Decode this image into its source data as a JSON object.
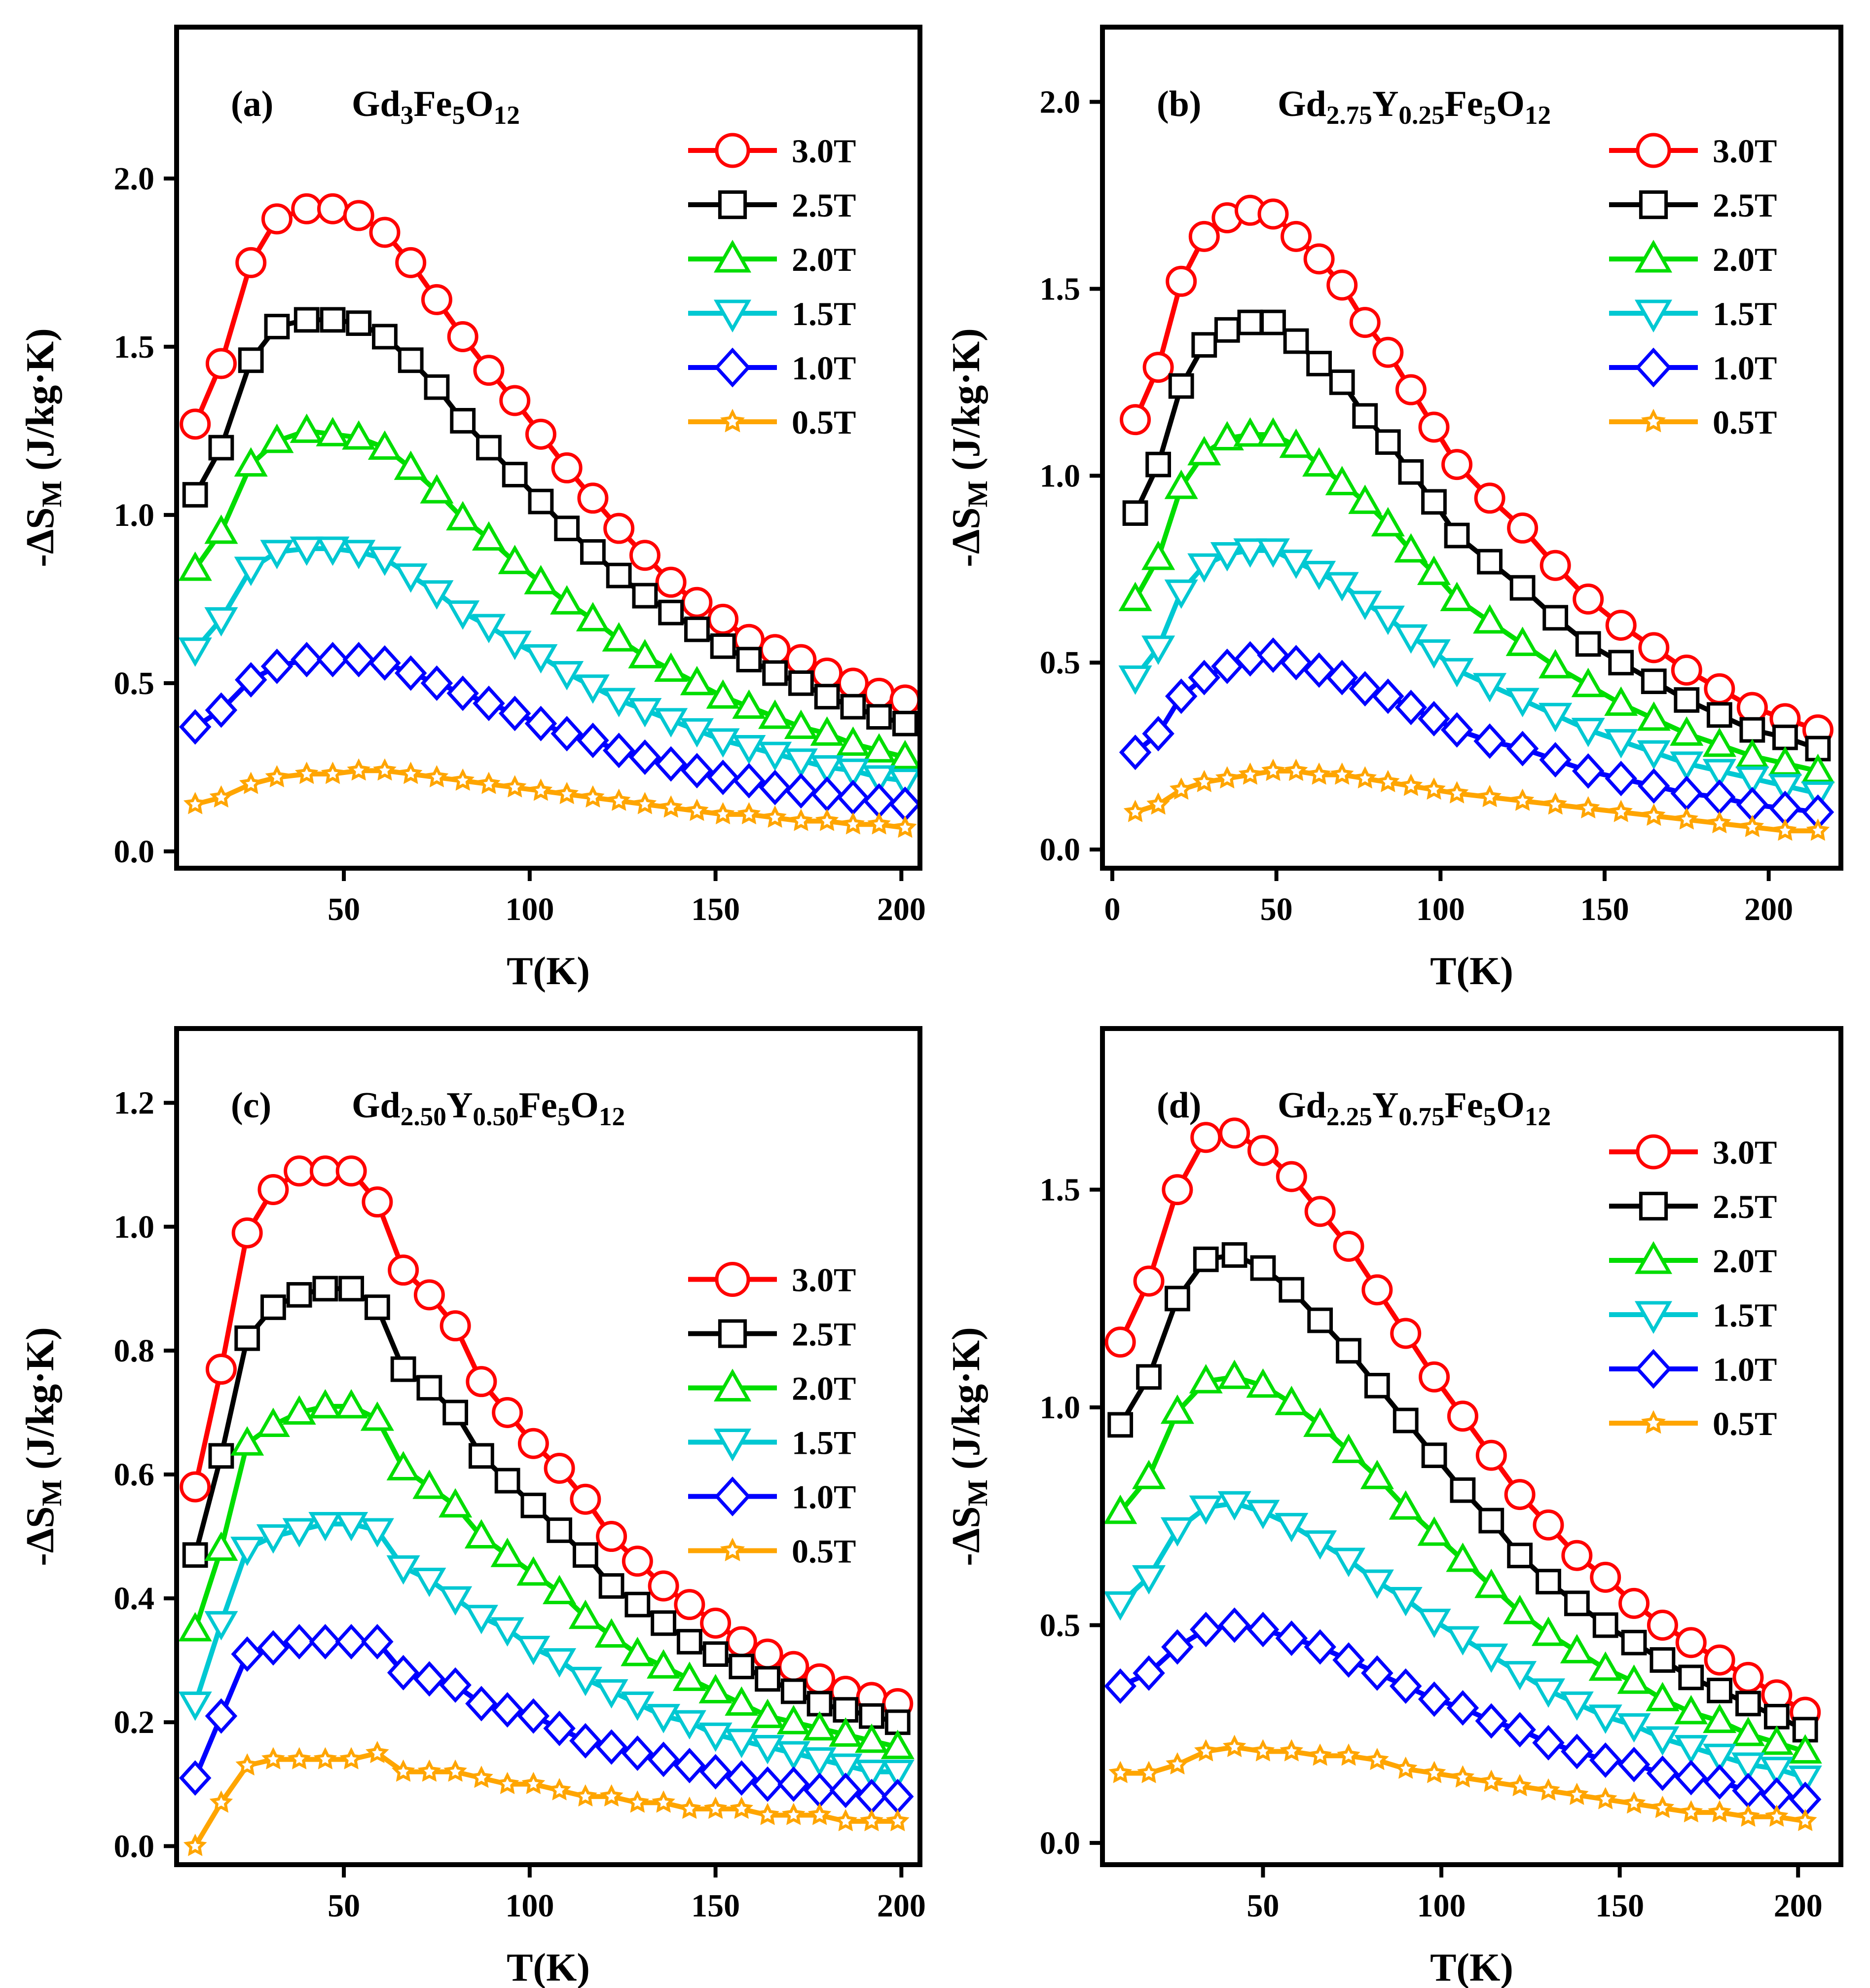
{
  "series_styles": [
    {
      "name": "3.0T",
      "color": "#ff0000",
      "marker": "circle"
    },
    {
      "name": "2.5T",
      "color": "#000000",
      "marker": "square"
    },
    {
      "name": "2.0T",
      "color": "#00dd00",
      "marker": "triangle-up"
    },
    {
      "name": "1.5T",
      "color": "#00c8d2",
      "marker": "triangle-down"
    },
    {
      "name": "1.0T",
      "color": "#0000ff",
      "marker": "diamond"
    },
    {
      "name": "0.5T",
      "color": "#ffa500",
      "marker": "star"
    }
  ],
  "chart_data": [
    {
      "type": "line",
      "panel": "(a)",
      "title": "Gd3Fe5O12",
      "title_subs": [
        "3",
        "5",
        "12"
      ],
      "xlabel": "T(K)",
      "ylabel": "-ΔS",
      "ylabel_sub": "M",
      "ylabel_unit": "(J/kg·K)",
      "xlim": [
        5,
        205
      ],
      "ylim": [
        -0.05,
        2.45
      ],
      "xticks": [
        50,
        100,
        150,
        200
      ],
      "yticks": [
        0.0,
        0.5,
        1.0,
        1.5,
        2.0
      ],
      "legend": "right-upper",
      "x": [
        10,
        17,
        25,
        32,
        40,
        47,
        54,
        61,
        68,
        75,
        82,
        89,
        96,
        103,
        110,
        117,
        124,
        131,
        138,
        145,
        152,
        159,
        166,
        173,
        180,
        187,
        194,
        201
      ],
      "series": [
        {
          "name": "3.0T",
          "values": [
            1.27,
            1.45,
            1.75,
            1.88,
            1.91,
            1.91,
            1.89,
            1.84,
            1.75,
            1.64,
            1.53,
            1.43,
            1.34,
            1.24,
            1.14,
            1.05,
            0.96,
            0.88,
            0.8,
            0.74,
            0.69,
            0.63,
            0.6,
            0.57,
            0.53,
            0.5,
            0.47,
            0.45
          ]
        },
        {
          "name": "2.5T",
          "values": [
            1.06,
            1.2,
            1.46,
            1.56,
            1.58,
            1.58,
            1.57,
            1.53,
            1.46,
            1.38,
            1.28,
            1.2,
            1.12,
            1.04,
            0.96,
            0.89,
            0.82,
            0.76,
            0.71,
            0.66,
            0.61,
            0.57,
            0.53,
            0.5,
            0.46,
            0.43,
            0.4,
            0.38
          ]
        },
        {
          "name": "2.0T",
          "values": [
            0.84,
            0.95,
            1.15,
            1.22,
            1.25,
            1.24,
            1.23,
            1.2,
            1.14,
            1.07,
            0.99,
            0.93,
            0.86,
            0.8,
            0.74,
            0.69,
            0.63,
            0.58,
            0.54,
            0.5,
            0.46,
            0.43,
            0.4,
            0.37,
            0.35,
            0.32,
            0.3,
            0.28
          ]
        },
        {
          "name": "1.5T",
          "values": [
            0.6,
            0.69,
            0.84,
            0.89,
            0.9,
            0.9,
            0.89,
            0.87,
            0.82,
            0.77,
            0.71,
            0.67,
            0.62,
            0.58,
            0.53,
            0.49,
            0.45,
            0.42,
            0.39,
            0.36,
            0.33,
            0.31,
            0.29,
            0.27,
            0.25,
            0.24,
            0.22,
            0.21
          ]
        },
        {
          "name": "1.0T",
          "values": [
            0.37,
            0.42,
            0.51,
            0.55,
            0.57,
            0.57,
            0.57,
            0.56,
            0.53,
            0.5,
            0.47,
            0.44,
            0.41,
            0.38,
            0.35,
            0.33,
            0.3,
            0.28,
            0.26,
            0.24,
            0.22,
            0.21,
            0.19,
            0.18,
            0.17,
            0.16,
            0.15,
            0.14
          ]
        },
        {
          "name": "0.5T",
          "values": [
            0.14,
            0.16,
            0.2,
            0.22,
            0.23,
            0.23,
            0.24,
            0.24,
            0.23,
            0.22,
            0.21,
            0.2,
            0.19,
            0.18,
            0.17,
            0.16,
            0.15,
            0.14,
            0.13,
            0.12,
            0.11,
            0.11,
            0.1,
            0.09,
            0.09,
            0.08,
            0.08,
            0.07
          ]
        }
      ]
    },
    {
      "type": "line",
      "panel": "(b)",
      "title": "Gd2.75Y0.25Fe5O12",
      "title_subs": [
        "2.75",
        "0.25",
        "5",
        "12"
      ],
      "xlabel": "T(K)",
      "ylabel": "-ΔS",
      "ylabel_sub": "M",
      "ylabel_unit": "(J/kg·K)",
      "xlim": [
        -3,
        222
      ],
      "ylim": [
        -0.05,
        2.2
      ],
      "xticks": [
        0,
        50,
        100,
        150,
        200
      ],
      "yticks": [
        0.0,
        0.5,
        1.0,
        1.5,
        2.0
      ],
      "legend": "right-upper",
      "x": [
        7,
        14,
        21,
        28,
        35,
        42,
        49,
        56,
        63,
        70,
        77,
        84,
        91,
        98,
        105,
        115,
        125,
        135,
        145,
        155,
        165,
        175,
        185,
        195,
        205,
        215
      ],
      "series": [
        {
          "name": "3.0T",
          "values": [
            1.15,
            1.29,
            1.52,
            1.64,
            1.69,
            1.71,
            1.7,
            1.64,
            1.58,
            1.51,
            1.41,
            1.33,
            1.23,
            1.13,
            1.03,
            0.94,
            0.86,
            0.76,
            0.67,
            0.6,
            0.54,
            0.48,
            0.43,
            0.38,
            0.35,
            0.32
          ]
        },
        {
          "name": "2.5T",
          "values": [
            0.9,
            1.03,
            1.24,
            1.35,
            1.39,
            1.41,
            1.41,
            1.36,
            1.3,
            1.25,
            1.16,
            1.09,
            1.01,
            0.93,
            0.84,
            0.77,
            0.7,
            0.62,
            0.55,
            0.5,
            0.45,
            0.4,
            0.36,
            0.32,
            0.3,
            0.27
          ]
        },
        {
          "name": "2.0T",
          "values": [
            0.67,
            0.78,
            0.97,
            1.06,
            1.1,
            1.11,
            1.11,
            1.08,
            1.03,
            0.98,
            0.93,
            0.87,
            0.8,
            0.74,
            0.67,
            0.61,
            0.55,
            0.49,
            0.44,
            0.39,
            0.35,
            0.31,
            0.28,
            0.25,
            0.23,
            0.21
          ]
        },
        {
          "name": "1.5T",
          "values": [
            0.46,
            0.54,
            0.69,
            0.76,
            0.79,
            0.8,
            0.8,
            0.77,
            0.74,
            0.71,
            0.66,
            0.62,
            0.57,
            0.53,
            0.48,
            0.44,
            0.4,
            0.36,
            0.32,
            0.29,
            0.26,
            0.23,
            0.21,
            0.19,
            0.17,
            0.15
          ]
        },
        {
          "name": "1.0T",
          "values": [
            0.26,
            0.31,
            0.41,
            0.46,
            0.49,
            0.51,
            0.52,
            0.5,
            0.48,
            0.46,
            0.43,
            0.41,
            0.38,
            0.35,
            0.32,
            0.29,
            0.27,
            0.24,
            0.21,
            0.19,
            0.17,
            0.15,
            0.14,
            0.12,
            0.11,
            0.1
          ]
        },
        {
          "name": "0.5T",
          "values": [
            0.1,
            0.12,
            0.16,
            0.18,
            0.19,
            0.2,
            0.21,
            0.21,
            0.2,
            0.2,
            0.19,
            0.18,
            0.17,
            0.16,
            0.15,
            0.14,
            0.13,
            0.12,
            0.11,
            0.1,
            0.09,
            0.08,
            0.07,
            0.06,
            0.05,
            0.05
          ]
        }
      ]
    },
    {
      "type": "line",
      "panel": "(c)",
      "title": "Gd2.50Y0.50Fe5O12",
      "title_subs": [
        "2.50",
        "0.50",
        "5",
        "12"
      ],
      "xlabel": "T(K)",
      "ylabel": "-ΔS",
      "ylabel_sub": "M",
      "ylabel_unit": "(J/kg·K)",
      "xlim": [
        5,
        205
      ],
      "ylim": [
        -0.03,
        1.32
      ],
      "xticks": [
        50,
        100,
        150,
        200
      ],
      "yticks": [
        0.0,
        0.2,
        0.4,
        0.6,
        0.8,
        1.0,
        1.2
      ],
      "legend": "right-middle",
      "x": [
        10,
        17,
        24,
        31,
        38,
        45,
        52,
        59,
        66,
        73,
        80,
        87,
        94,
        101,
        108,
        115,
        122,
        129,
        136,
        143,
        150,
        157,
        164,
        171,
        178,
        185,
        192,
        199
      ],
      "series": [
        {
          "name": "3.0T",
          "values": [
            0.58,
            0.77,
            0.99,
            1.06,
            1.09,
            1.09,
            1.09,
            1.04,
            0.93,
            0.89,
            0.84,
            0.75,
            0.7,
            0.65,
            0.61,
            0.56,
            0.5,
            0.46,
            0.42,
            0.39,
            0.36,
            0.33,
            0.31,
            0.29,
            0.27,
            0.25,
            0.24,
            0.23
          ]
        },
        {
          "name": "2.5T",
          "values": [
            0.47,
            0.63,
            0.82,
            0.87,
            0.89,
            0.9,
            0.9,
            0.87,
            0.77,
            0.74,
            0.7,
            0.63,
            0.59,
            0.55,
            0.51,
            0.47,
            0.42,
            0.39,
            0.36,
            0.33,
            0.31,
            0.29,
            0.27,
            0.25,
            0.23,
            0.22,
            0.21,
            0.2
          ]
        },
        {
          "name": "2.0T",
          "values": [
            0.35,
            0.48,
            0.65,
            0.68,
            0.7,
            0.71,
            0.71,
            0.69,
            0.61,
            0.58,
            0.55,
            0.5,
            0.47,
            0.44,
            0.41,
            0.37,
            0.34,
            0.31,
            0.29,
            0.27,
            0.25,
            0.23,
            0.21,
            0.2,
            0.19,
            0.18,
            0.17,
            0.16
          ]
        },
        {
          "name": "1.5T",
          "values": [
            0.23,
            0.36,
            0.48,
            0.5,
            0.51,
            0.52,
            0.52,
            0.51,
            0.45,
            0.43,
            0.4,
            0.37,
            0.35,
            0.32,
            0.3,
            0.27,
            0.25,
            0.23,
            0.21,
            0.2,
            0.18,
            0.17,
            0.16,
            0.15,
            0.14,
            0.13,
            0.12,
            0.12
          ]
        },
        {
          "name": "1.0T",
          "values": [
            0.11,
            0.21,
            0.31,
            0.32,
            0.33,
            0.33,
            0.33,
            0.33,
            0.28,
            0.27,
            0.26,
            0.23,
            0.22,
            0.21,
            0.19,
            0.17,
            0.16,
            0.15,
            0.14,
            0.13,
            0.12,
            0.11,
            0.1,
            0.1,
            0.09,
            0.09,
            0.08,
            0.08
          ]
        },
        {
          "name": "0.5T",
          "values": [
            0.0,
            0.07,
            0.13,
            0.14,
            0.14,
            0.14,
            0.14,
            0.15,
            0.12,
            0.12,
            0.12,
            0.11,
            0.1,
            0.1,
            0.09,
            0.08,
            0.08,
            0.07,
            0.07,
            0.06,
            0.06,
            0.06,
            0.05,
            0.05,
            0.05,
            0.04,
            0.04,
            0.04
          ]
        }
      ]
    },
    {
      "type": "line",
      "panel": "(d)",
      "title": "Gd2.25Y0.75Fe5O12",
      "title_subs": [
        "2.25",
        "0.75",
        "5",
        "12"
      ],
      "xlabel": "T(K)",
      "ylabel": "-ΔS",
      "ylabel_sub": "M",
      "ylabel_unit": "(J/kg·K)",
      "xlim": [
        5,
        212
      ],
      "ylim": [
        -0.05,
        1.87
      ],
      "xticks": [
        50,
        100,
        150,
        200
      ],
      "yticks": [
        0.0,
        0.5,
        1.0,
        1.5
      ],
      "legend": "right-upper",
      "x": [
        10,
        18,
        26,
        34,
        42,
        50,
        58,
        66,
        74,
        82,
        90,
        98,
        106,
        114,
        122,
        130,
        138,
        146,
        154,
        162,
        170,
        178,
        186,
        194,
        202
      ],
      "series": [
        {
          "name": "3.0T",
          "values": [
            1.15,
            1.29,
            1.5,
            1.62,
            1.63,
            1.59,
            1.53,
            1.45,
            1.37,
            1.27,
            1.17,
            1.07,
            0.98,
            0.89,
            0.8,
            0.73,
            0.66,
            0.61,
            0.55,
            0.5,
            0.46,
            0.42,
            0.38,
            0.34,
            0.3
          ]
        },
        {
          "name": "2.5T",
          "values": [
            0.96,
            1.07,
            1.25,
            1.34,
            1.35,
            1.32,
            1.27,
            1.2,
            1.13,
            1.05,
            0.97,
            0.89,
            0.81,
            0.74,
            0.66,
            0.6,
            0.55,
            0.5,
            0.46,
            0.42,
            0.38,
            0.35,
            0.32,
            0.29,
            0.26
          ]
        },
        {
          "name": "2.0T",
          "values": [
            0.76,
            0.84,
            0.99,
            1.06,
            1.07,
            1.05,
            1.01,
            0.96,
            0.9,
            0.84,
            0.77,
            0.71,
            0.65,
            0.59,
            0.53,
            0.48,
            0.44,
            0.4,
            0.37,
            0.33,
            0.3,
            0.28,
            0.25,
            0.23,
            0.21
          ]
        },
        {
          "name": "1.5T",
          "values": [
            0.55,
            0.61,
            0.72,
            0.77,
            0.78,
            0.76,
            0.73,
            0.69,
            0.65,
            0.6,
            0.56,
            0.51,
            0.47,
            0.43,
            0.39,
            0.35,
            0.32,
            0.29,
            0.27,
            0.24,
            0.22,
            0.2,
            0.18,
            0.17,
            0.15
          ]
        },
        {
          "name": "1.0T",
          "values": [
            0.36,
            0.39,
            0.45,
            0.49,
            0.5,
            0.49,
            0.47,
            0.45,
            0.42,
            0.39,
            0.36,
            0.33,
            0.31,
            0.28,
            0.26,
            0.23,
            0.21,
            0.19,
            0.18,
            0.16,
            0.15,
            0.14,
            0.12,
            0.11,
            0.1
          ]
        },
        {
          "name": "0.5T",
          "values": [
            0.16,
            0.16,
            0.18,
            0.21,
            0.22,
            0.21,
            0.21,
            0.2,
            0.2,
            0.19,
            0.17,
            0.16,
            0.15,
            0.14,
            0.13,
            0.12,
            0.11,
            0.1,
            0.09,
            0.08,
            0.07,
            0.07,
            0.06,
            0.06,
            0.05
          ]
        }
      ]
    }
  ]
}
